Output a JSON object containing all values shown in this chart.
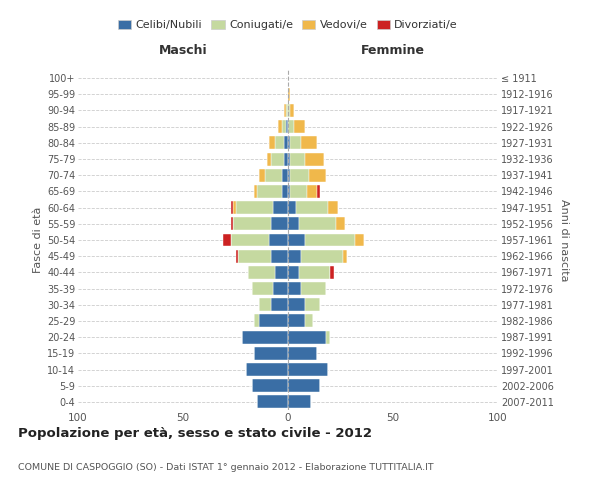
{
  "age_groups": [
    "0-4",
    "5-9",
    "10-14",
    "15-19",
    "20-24",
    "25-29",
    "30-34",
    "35-39",
    "40-44",
    "45-49",
    "50-54",
    "55-59",
    "60-64",
    "65-69",
    "70-74",
    "75-79",
    "80-84",
    "85-89",
    "90-94",
    "95-99",
    "100+"
  ],
  "birth_years": [
    "2007-2011",
    "2002-2006",
    "1997-2001",
    "1992-1996",
    "1987-1991",
    "1982-1986",
    "1977-1981",
    "1972-1976",
    "1967-1971",
    "1962-1966",
    "1957-1961",
    "1952-1956",
    "1947-1951",
    "1942-1946",
    "1937-1941",
    "1932-1936",
    "1927-1931",
    "1922-1926",
    "1917-1921",
    "1912-1916",
    "≤ 1911"
  ],
  "colors": {
    "celibe": "#3a6ea5",
    "coniugato": "#c5d9a0",
    "vedovo": "#f0b84b",
    "divorziato": "#cc2222"
  },
  "maschi": {
    "celibe": [
      15,
      17,
      20,
      16,
      22,
      14,
      8,
      7,
      6,
      8,
      9,
      8,
      7,
      3,
      3,
      2,
      2,
      1,
      0,
      0,
      0
    ],
    "coniugato": [
      0,
      0,
      0,
      0,
      0,
      2,
      6,
      10,
      13,
      16,
      18,
      18,
      18,
      12,
      8,
      6,
      4,
      2,
      1,
      0,
      0
    ],
    "vedovo": [
      0,
      0,
      0,
      0,
      0,
      0,
      0,
      0,
      0,
      0,
      0,
      0,
      1,
      1,
      3,
      2,
      3,
      2,
      1,
      0,
      0
    ],
    "divorziato": [
      0,
      0,
      0,
      0,
      0,
      0,
      0,
      0,
      0,
      1,
      4,
      1,
      1,
      0,
      0,
      0,
      0,
      0,
      0,
      0,
      0
    ]
  },
  "femmine": {
    "nubile": [
      11,
      15,
      19,
      14,
      18,
      8,
      8,
      6,
      5,
      6,
      8,
      5,
      4,
      1,
      1,
      1,
      1,
      0,
      0,
      0,
      0
    ],
    "coniugata": [
      0,
      0,
      0,
      0,
      2,
      4,
      7,
      12,
      15,
      20,
      24,
      18,
      15,
      8,
      9,
      7,
      5,
      3,
      1,
      0,
      0
    ],
    "vedova": [
      0,
      0,
      0,
      0,
      0,
      0,
      0,
      0,
      0,
      2,
      4,
      4,
      5,
      5,
      8,
      9,
      8,
      5,
      2,
      1,
      0
    ],
    "divorziata": [
      0,
      0,
      0,
      0,
      0,
      0,
      0,
      0,
      2,
      0,
      0,
      0,
      0,
      1,
      0,
      0,
      0,
      0,
      0,
      0,
      0
    ]
  },
  "title": "Popolazione per età, sesso e stato civile - 2012",
  "subtitle": "COMUNE DI CASPOGGIO (SO) - Dati ISTAT 1° gennaio 2012 - Elaborazione TUTTITALIA.IT",
  "ylabel_left": "Fasce di età",
  "ylabel_right": "Anni di nascita",
  "xlabel_maschi": "Maschi",
  "xlabel_femmine": "Femmine",
  "xlim": 100,
  "legend_labels": [
    "Celibi/Nubili",
    "Coniugati/e",
    "Vedovi/e",
    "Divorziati/e"
  ],
  "background_color": "#ffffff"
}
